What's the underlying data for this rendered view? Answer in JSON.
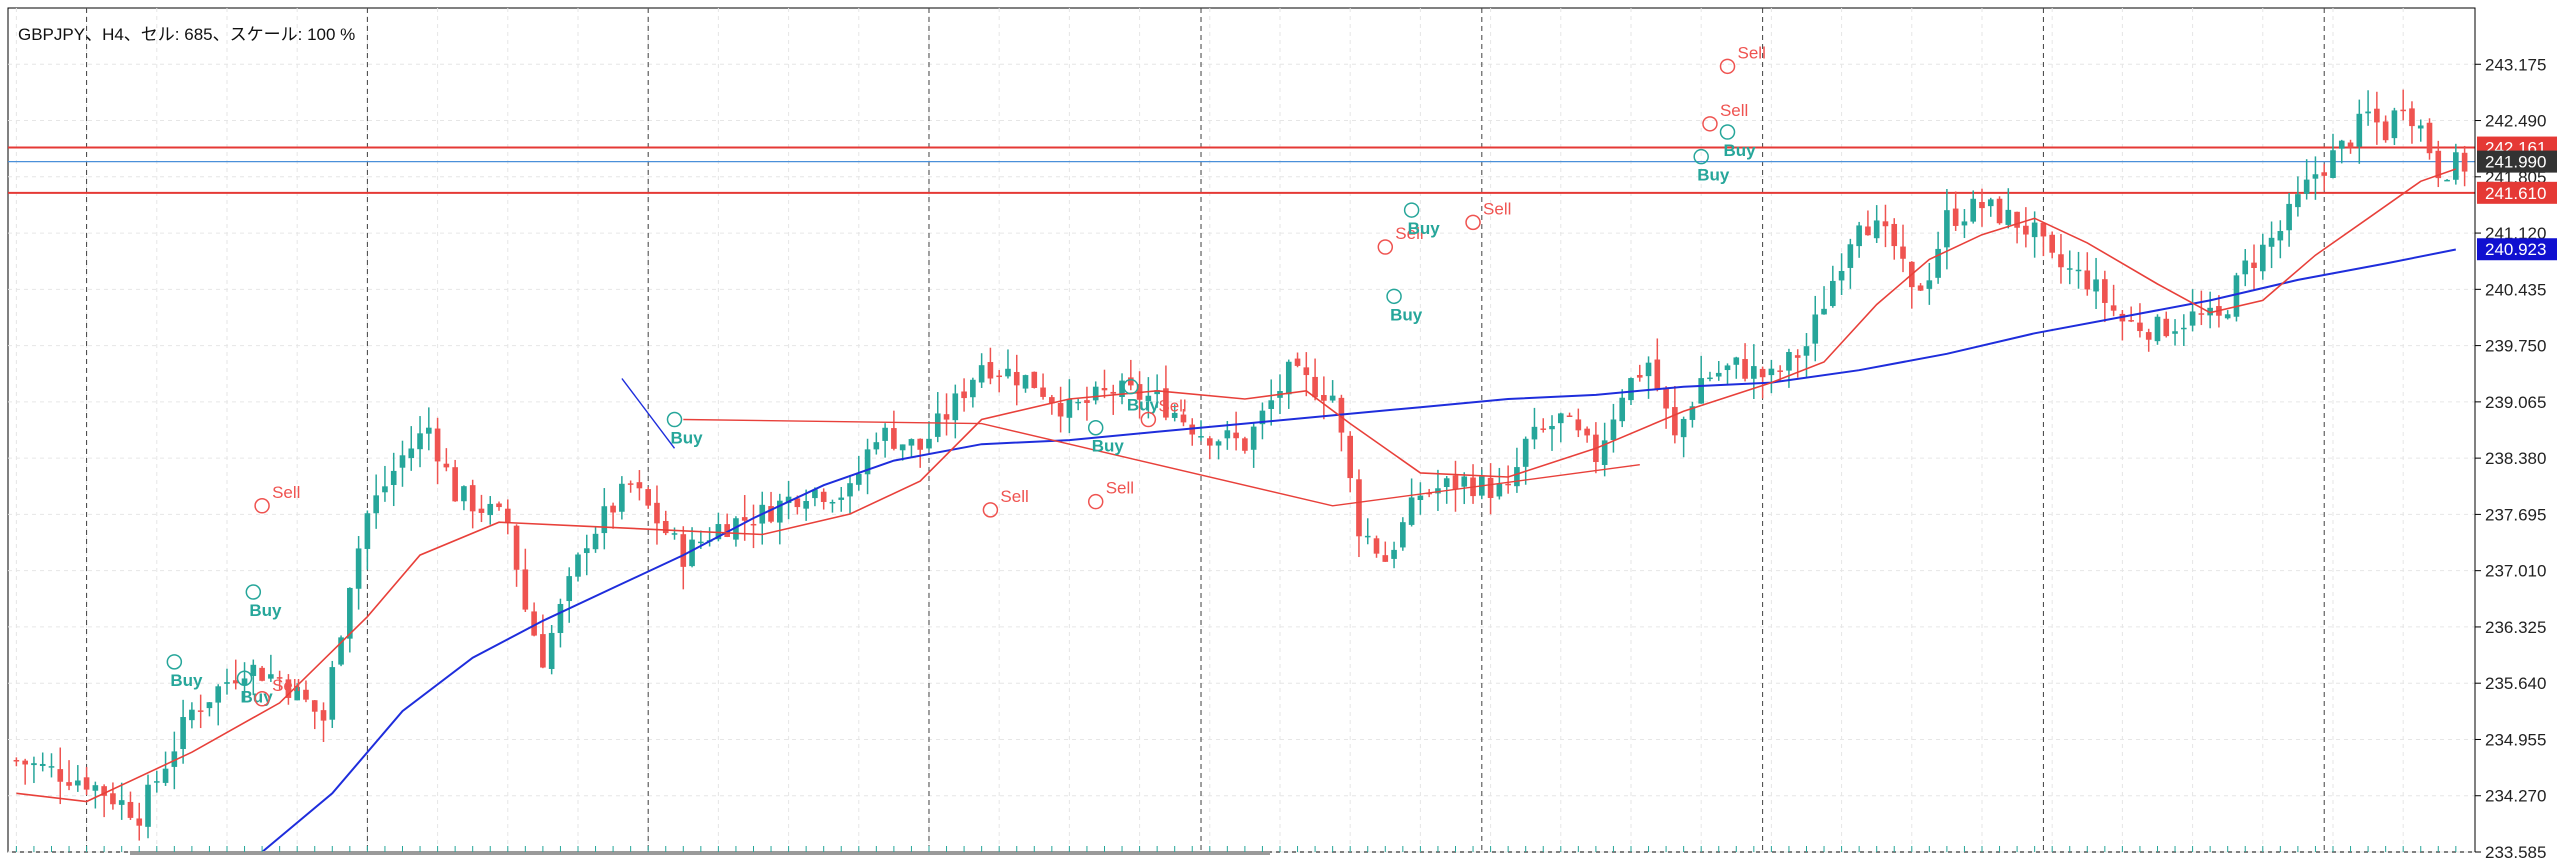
{
  "header": {
    "label": "GBPJPY、H4、セル: 685、スケール: 100 %"
  },
  "colors": {
    "background": "#ffffff",
    "grid": "#e6e6e6",
    "session_separator": "#404040",
    "bull": "#26a69a",
    "bear": "#ef5350",
    "ma_fast": "#e8403a",
    "ma_slow": "#1e2ddc",
    "hline_red": "#e53935",
    "hline_blue": "#4a90d9",
    "badge_dark": "#333333",
    "badge_red": "#e53935",
    "badge_blue": "#1010d0"
  },
  "chart_data": {
    "type": "candlestick",
    "symbol": "GBPJPY",
    "timeframe": "H4",
    "grid": true,
    "ylim": [
      233.585,
      243.86
    ],
    "y_ticks": [
      "243.175",
      "242.490",
      "241.805",
      "241.120",
      "240.435",
      "239.750",
      "239.065",
      "238.380",
      "237.695",
      "237.010",
      "236.325",
      "235.640",
      "234.955",
      "234.270",
      "233.585"
    ],
    "price_badges": [
      {
        "label": "242.161",
        "value": 242.161,
        "style": "red"
      },
      {
        "label": "241.990",
        "value": 241.99,
        "style": "dark"
      },
      {
        "label": "241.610",
        "value": 241.61,
        "style": "red"
      },
      {
        "label": "240.923",
        "value": 240.923,
        "style": "blue"
      }
    ],
    "horizontal_lines": [
      {
        "value": 242.161,
        "color": "red"
      },
      {
        "value": 241.99,
        "color": "blue"
      },
      {
        "value": 241.61,
        "color": "red"
      }
    ],
    "session_separators": [
      8,
      40,
      72,
      104,
      135,
      167,
      199,
      231,
      263,
      295
    ],
    "anchors_close": [
      [
        0,
        234.7
      ],
      [
        8,
        234.45
      ],
      [
        14,
        234.05
      ],
      [
        20,
        235.3
      ],
      [
        26,
        235.85
      ],
      [
        30,
        235.7
      ],
      [
        35,
        235.2
      ],
      [
        38,
        236.9
      ],
      [
        40,
        237.7
      ],
      [
        44,
        238.4
      ],
      [
        47,
        238.75
      ],
      [
        50,
        237.95
      ],
      [
        56,
        237.6
      ],
      [
        58,
        236.55
      ],
      [
        60,
        235.95
      ],
      [
        65,
        237.4
      ],
      [
        70,
        238.05
      ],
      [
        76,
        237.2
      ],
      [
        80,
        237.55
      ],
      [
        85,
        237.7
      ],
      [
        90,
        238.0
      ],
      [
        95,
        237.95
      ],
      [
        98,
        238.7
      ],
      [
        103,
        238.5
      ],
      [
        107,
        239.05
      ],
      [
        110,
        239.55
      ],
      [
        116,
        239.3
      ],
      [
        120,
        238.95
      ],
      [
        125,
        239.2
      ],
      [
        130,
        239.1
      ],
      [
        135,
        238.7
      ],
      [
        140,
        238.55
      ],
      [
        145,
        239.4
      ],
      [
        150,
        239.15
      ],
      [
        153,
        237.55
      ],
      [
        156,
        237.15
      ],
      [
        160,
        237.95
      ],
      [
        165,
        238.1
      ],
      [
        170,
        237.95
      ],
      [
        172,
        238.55
      ],
      [
        176,
        238.85
      ],
      [
        180,
        238.4
      ],
      [
        183,
        239.2
      ],
      [
        186,
        239.55
      ],
      [
        189,
        238.6
      ],
      [
        192,
        239.35
      ],
      [
        196,
        239.5
      ],
      [
        200,
        239.35
      ],
      [
        204,
        239.75
      ],
      [
        207,
        240.55
      ],
      [
        210,
        241.35
      ],
      [
        212,
        241.15
      ],
      [
        214,
        240.95
      ],
      [
        216,
        240.35
      ],
      [
        218,
        240.65
      ],
      [
        220,
        241.3
      ],
      [
        224,
        241.45
      ],
      [
        228,
        241.25
      ],
      [
        230,
        241.1
      ],
      [
        232,
        240.75
      ],
      [
        236,
        240.55
      ],
      [
        240,
        240.05
      ],
      [
        244,
        239.95
      ],
      [
        248,
        240.1
      ],
      [
        251,
        240.05
      ],
      [
        254,
        240.7
      ],
      [
        258,
        241.15
      ],
      [
        262,
        241.85
      ],
      [
        265,
        242.15
      ],
      [
        268,
        242.55
      ],
      [
        270,
        242.35
      ],
      [
        272,
        242.75
      ],
      [
        274,
        242.4
      ],
      [
        276,
        241.9
      ],
      [
        278,
        241.95
      ]
    ],
    "ma_fast_points": [
      [
        0,
        234.3
      ],
      [
        8,
        234.2
      ],
      [
        20,
        234.8
      ],
      [
        30,
        235.4
      ],
      [
        40,
        236.45
      ],
      [
        46,
        237.2
      ],
      [
        55,
        237.6
      ],
      [
        65,
        237.55
      ],
      [
        75,
        237.5
      ],
      [
        85,
        237.45
      ],
      [
        95,
        237.7
      ],
      [
        103,
        238.1
      ],
      [
        110,
        238.85
      ],
      [
        120,
        239.1
      ],
      [
        130,
        239.2
      ],
      [
        140,
        239.1
      ],
      [
        147,
        239.2
      ],
      [
        152,
        238.8
      ],
      [
        160,
        238.2
      ],
      [
        170,
        238.15
      ],
      [
        180,
        238.5
      ],
      [
        190,
        238.95
      ],
      [
        200,
        239.3
      ],
      [
        206,
        239.55
      ],
      [
        212,
        240.25
      ],
      [
        218,
        240.8
      ],
      [
        224,
        241.1
      ],
      [
        230,
        241.3
      ],
      [
        236,
        241.0
      ],
      [
        244,
        240.5
      ],
      [
        250,
        240.15
      ],
      [
        256,
        240.3
      ],
      [
        262,
        240.85
      ],
      [
        268,
        241.3
      ],
      [
        274,
        241.75
      ],
      [
        278,
        241.9
      ]
    ],
    "ma_slow_points": [
      [
        28,
        233.585
      ],
      [
        36,
        234.3
      ],
      [
        44,
        235.3
      ],
      [
        52,
        235.95
      ],
      [
        60,
        236.4
      ],
      [
        68,
        236.8
      ],
      [
        76,
        237.2
      ],
      [
        84,
        237.65
      ],
      [
        92,
        238.05
      ],
      [
        100,
        238.35
      ],
      [
        110,
        238.55
      ],
      [
        120,
        238.6
      ],
      [
        130,
        238.7
      ],
      [
        140,
        238.8
      ],
      [
        150,
        238.9
      ],
      [
        160,
        239.0
      ],
      [
        170,
        239.1
      ],
      [
        180,
        239.15
      ],
      [
        190,
        239.25
      ],
      [
        200,
        239.3
      ],
      [
        210,
        239.45
      ],
      [
        220,
        239.65
      ],
      [
        230,
        239.9
      ],
      [
        240,
        240.1
      ],
      [
        250,
        240.3
      ],
      [
        260,
        240.55
      ],
      [
        270,
        240.75
      ],
      [
        278,
        240.92
      ]
    ],
    "zigzag_red": [
      [
        76,
        238.85
      ],
      [
        110,
        238.8
      ],
      [
        150,
        237.8
      ],
      [
        185,
        238.3
      ]
    ],
    "zigzag_blue": [
      [
        69,
        239.35
      ],
      [
        75,
        238.5
      ]
    ],
    "signals": [
      {
        "bar": 18,
        "price": 235.9,
        "label": "Buy",
        "type": "buy"
      },
      {
        "bar": 26,
        "price": 235.7,
        "label": "Buy",
        "type": "buy"
      },
      {
        "bar": 28,
        "price": 235.45,
        "label": "Sell",
        "type": "sell"
      },
      {
        "bar": 27,
        "price": 236.75,
        "label": "Buy",
        "type": "buy"
      },
      {
        "bar": 28,
        "price": 237.8,
        "label": "Sell",
        "type": "sell"
      },
      {
        "bar": 75,
        "price": 238.85,
        "label": "Buy",
        "type": "buy"
      },
      {
        "bar": 111,
        "price": 237.75,
        "label": "Sell",
        "type": "sell"
      },
      {
        "bar": 123,
        "price": 237.85,
        "label": "Sell",
        "type": "sell"
      },
      {
        "bar": 123,
        "price": 238.75,
        "label": "Buy",
        "type": "buy"
      },
      {
        "bar": 127,
        "price": 239.25,
        "label": "Buy",
        "type": "buy"
      },
      {
        "bar": 129,
        "price": 238.85,
        "label": "Sell",
        "type": "sell"
      },
      {
        "bar": 156,
        "price": 240.95,
        "label": "Sell",
        "type": "sell"
      },
      {
        "bar": 157,
        "price": 240.35,
        "label": "Buy",
        "type": "buy"
      },
      {
        "bar": 159,
        "price": 241.4,
        "label": "Buy",
        "type": "buy"
      },
      {
        "bar": 166,
        "price": 241.25,
        "label": "Sell",
        "type": "sell"
      },
      {
        "bar": 192,
        "price": 242.05,
        "label": "Buy",
        "type": "buy"
      },
      {
        "bar": 193,
        "price": 242.45,
        "label": "Sell",
        "type": "sell"
      },
      {
        "bar": 195,
        "price": 242.35,
        "label": "Buy",
        "type": "buy"
      },
      {
        "bar": 195,
        "price": 243.15,
        "label": "Sell",
        "type": "sell"
      }
    ]
  }
}
